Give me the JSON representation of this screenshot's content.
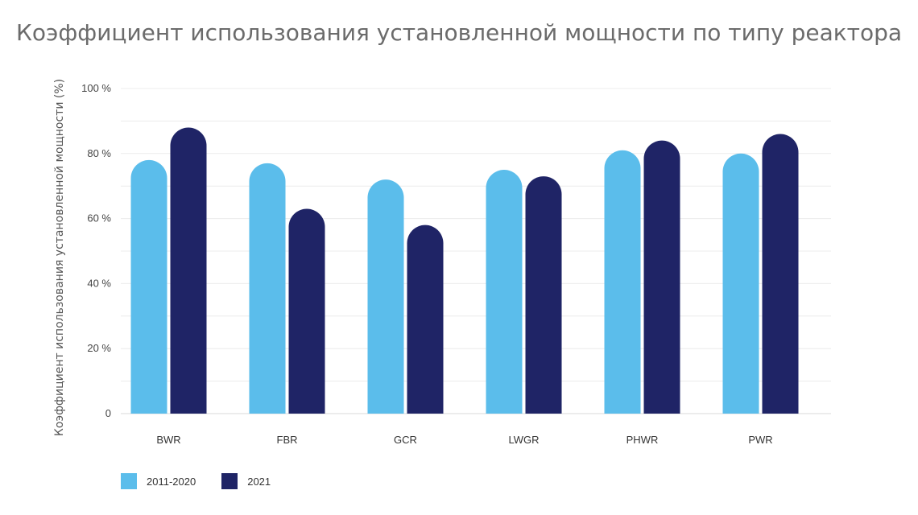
{
  "chart_data": {
    "type": "bar",
    "title": "Коэффициент использования установленной мощности по типу реактора",
    "xlabel": "",
    "ylabel": "Коэффициент использования установленной мощности (%)",
    "ylim": [
      0,
      100
    ],
    "yticks": [
      {
        "value": 0,
        "label": "0"
      },
      {
        "value": 20,
        "label": "20 %"
      },
      {
        "value": 40,
        "label": "40 %"
      },
      {
        "value": 60,
        "label": "60 %"
      },
      {
        "value": 80,
        "label": "80 %"
      },
      {
        "value": 100,
        "label": "100 %"
      }
    ],
    "grid": true,
    "legend_position": "bottom-left",
    "categories": [
      "BWR",
      "FBR",
      "GCR",
      "LWGR",
      "PHWR",
      "PWR"
    ],
    "series": [
      {
        "name": "2011-2020",
        "color": "#5bbdeb",
        "values": [
          78,
          77,
          72,
          75,
          81,
          80
        ]
      },
      {
        "name": "2021",
        "color": "#1f2466",
        "values": [
          88,
          63,
          58,
          73,
          84,
          86
        ]
      }
    ]
  }
}
